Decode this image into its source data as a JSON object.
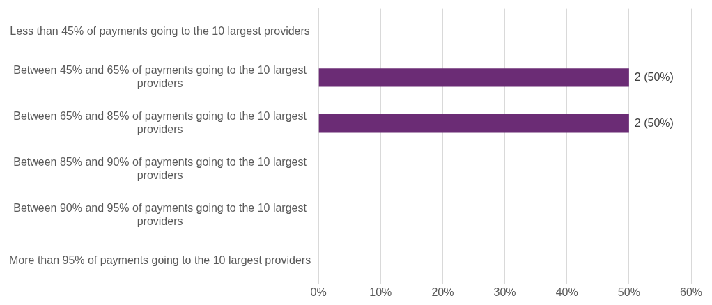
{
  "chart_data": {
    "type": "bar",
    "orientation": "horizontal",
    "categories": [
      "Less than 45% of payments going to the 10 largest providers",
      "Between 45% and 65% of payments going to the 10 largest providers",
      "Between 65% and 85% of payments going to the 10 largest providers",
      "Between 85% and 90% of payments going to the 10 largest providers",
      "Between 90% and 95% of payments going to the 10 largest providers",
      "More than 95% of payments going to the 10 largest providers"
    ],
    "values": [
      null,
      50,
      50,
      null,
      null,
      null
    ],
    "value_labels": [
      null,
      "2 (50%)",
      "2 (50%)",
      null,
      null,
      null
    ],
    "color": "#6b2c75",
    "xlim": [
      0,
      60
    ],
    "xticks": [
      {
        "value": 0,
        "label": "0%"
      },
      {
        "value": 10,
        "label": "10%"
      },
      {
        "value": 20,
        "label": "20%"
      },
      {
        "value": 30,
        "label": "30%"
      },
      {
        "value": 40,
        "label": "40%"
      },
      {
        "value": 50,
        "label": "50%"
      },
      {
        "value": 60,
        "label": "60%"
      }
    ],
    "grid": "x",
    "legend": false
  }
}
